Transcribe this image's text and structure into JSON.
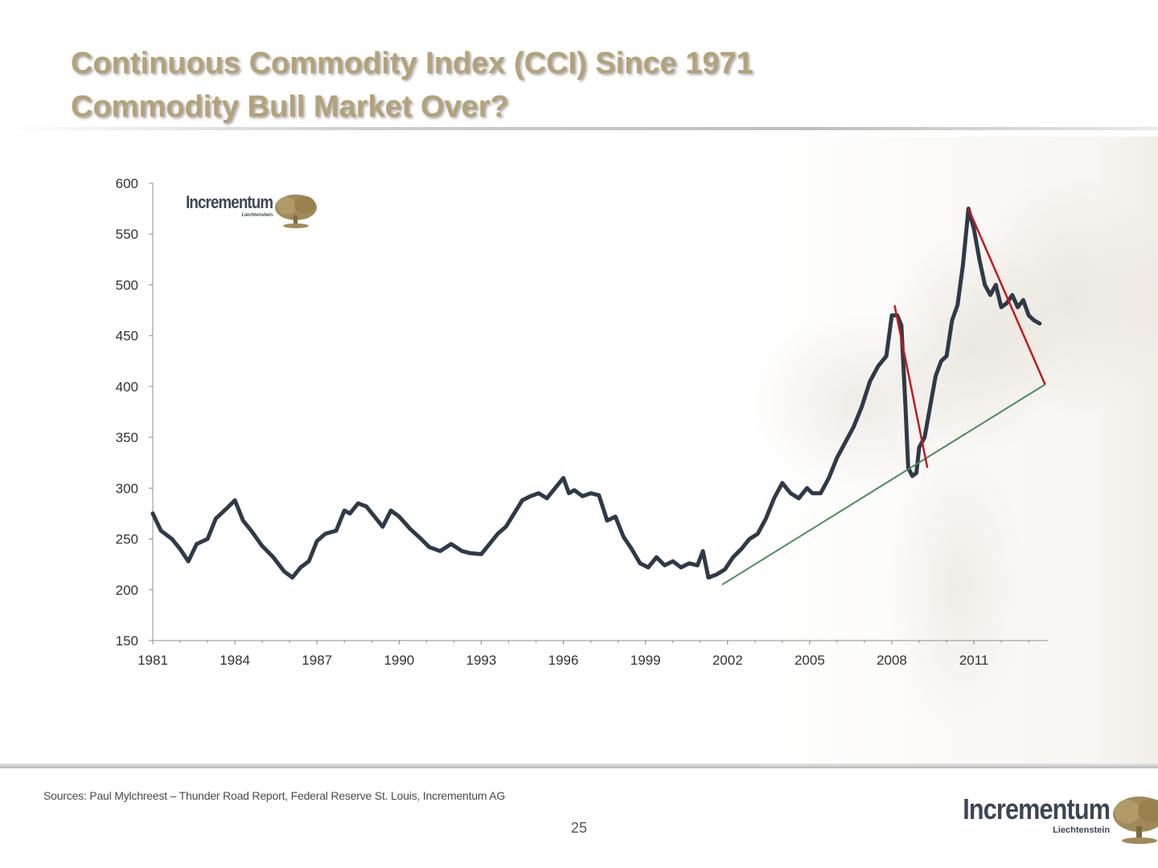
{
  "title": {
    "line1": "Continuous Commodity Index (CCI) Since 1971",
    "line2": "Commodity Bull Market Over?"
  },
  "sources": "Sources: Paul Mylchreest – Thunder Road Report, Federal Reserve St. Louis, Incrementum AG",
  "page_number": "25",
  "logo": {
    "brand": "Incrementum",
    "sub": "Liechtenstein"
  },
  "colors": {
    "title": "#b3a27a",
    "series": "#2f3a48",
    "resistance": "#c0191f",
    "support": "#4a8a5e",
    "axis": "#8c8c8c",
    "tree": "#a08a5a"
  },
  "chart_data": {
    "type": "line",
    "title": "",
    "xlabel": "",
    "ylabel": "",
    "xlim": [
      1981,
      2013.7
    ],
    "ylim": [
      150,
      600
    ],
    "x_ticks": [
      "1981",
      "1984",
      "1987",
      "1990",
      "1993",
      "1996",
      "1999",
      "2002",
      "2005",
      "2008",
      "2011"
    ],
    "y_ticks": [
      "600",
      "550",
      "500",
      "450",
      "400",
      "350",
      "300",
      "250",
      "200",
      "150"
    ],
    "grid": false,
    "legend": "none",
    "series": [
      {
        "x": [
          1981.0,
          1981.3,
          1981.7,
          1982.0,
          1982.3,
          1982.6,
          1983.0,
          1983.3,
          1983.7,
          1984.0,
          1984.3,
          1984.6,
          1985.0,
          1985.4,
          1985.8,
          1986.1,
          1986.4,
          1986.7,
          1987.0,
          1987.3,
          1987.7,
          1988.0,
          1988.2,
          1988.5,
          1988.8,
          1989.1,
          1989.4,
          1989.7,
          1990.0,
          1990.4,
          1990.8,
          1991.1,
          1991.5,
          1991.9,
          1992.3,
          1992.6,
          1993.0,
          1993.3,
          1993.6,
          1993.9,
          1994.2,
          1994.5,
          1994.8,
          1995.1,
          1995.4,
          1995.7,
          1996.0,
          1996.2,
          1996.4,
          1996.7,
          1997.0,
          1997.3,
          1997.6,
          1997.9,
          1998.2,
          1998.5,
          1998.8,
          1999.1,
          1999.4,
          1999.7,
          2000.0,
          2000.3,
          2000.6,
          2000.9,
          2001.1,
          2001.3,
          2001.6,
          2001.9,
          2002.2,
          2002.5,
          2002.8,
          2003.1,
          2003.4,
          2003.7,
          2004.0,
          2004.3,
          2004.6,
          2004.9,
          2005.1,
          2005.4,
          2005.7,
          2006.0,
          2006.3,
          2006.6,
          2006.9,
          2007.2,
          2007.5,
          2007.8,
          2008.0,
          2008.2,
          2008.35,
          2008.5,
          2008.6,
          2008.75,
          2008.9,
          2009.0,
          2009.2,
          2009.4,
          2009.6,
          2009.8,
          2010.0,
          2010.2,
          2010.4,
          2010.6,
          2010.8,
          2010.9,
          2011.0,
          2011.2,
          2011.4,
          2011.6,
          2011.8,
          2012.0,
          2012.2,
          2012.4,
          2012.6,
          2012.8,
          2013.0,
          2013.2,
          2013.4
        ],
        "y": [
          275,
          258,
          250,
          240,
          228,
          245,
          250,
          270,
          280,
          288,
          268,
          258,
          243,
          232,
          218,
          212,
          222,
          228,
          248,
          255,
          258,
          278,
          275,
          285,
          282,
          272,
          262,
          278,
          272,
          260,
          250,
          242,
          238,
          245,
          238,
          236,
          235,
          245,
          255,
          262,
          275,
          288,
          292,
          295,
          290,
          300,
          310,
          295,
          298,
          292,
          295,
          293,
          268,
          272,
          252,
          240,
          226,
          222,
          232,
          224,
          228,
          222,
          226,
          224,
          238,
          212,
          215,
          220,
          232,
          240,
          250,
          255,
          270,
          290,
          305,
          295,
          290,
          300,
          295,
          295,
          310,
          330,
          345,
          360,
          380,
          405,
          420,
          430,
          470,
          470,
          460,
          380,
          320,
          312,
          315,
          340,
          350,
          380,
          410,
          425,
          430,
          465,
          480,
          520,
          575,
          565,
          555,
          525,
          500,
          490,
          500,
          478,
          482,
          490,
          478,
          485,
          470,
          465,
          462
        ]
      }
    ],
    "trendlines": [
      {
        "name": "",
        "kind": "support",
        "x": [
          2001.8,
          2013.6
        ],
        "y": [
          205,
          402
        ]
      },
      {
        "name": "",
        "kind": "resistance",
        "x": [
          2008.1,
          2009.3
        ],
        "y": [
          480,
          320
        ]
      },
      {
        "name": "",
        "kind": "resistance",
        "x": [
          2010.8,
          2013.6
        ],
        "y": [
          575,
          402
        ]
      }
    ]
  }
}
